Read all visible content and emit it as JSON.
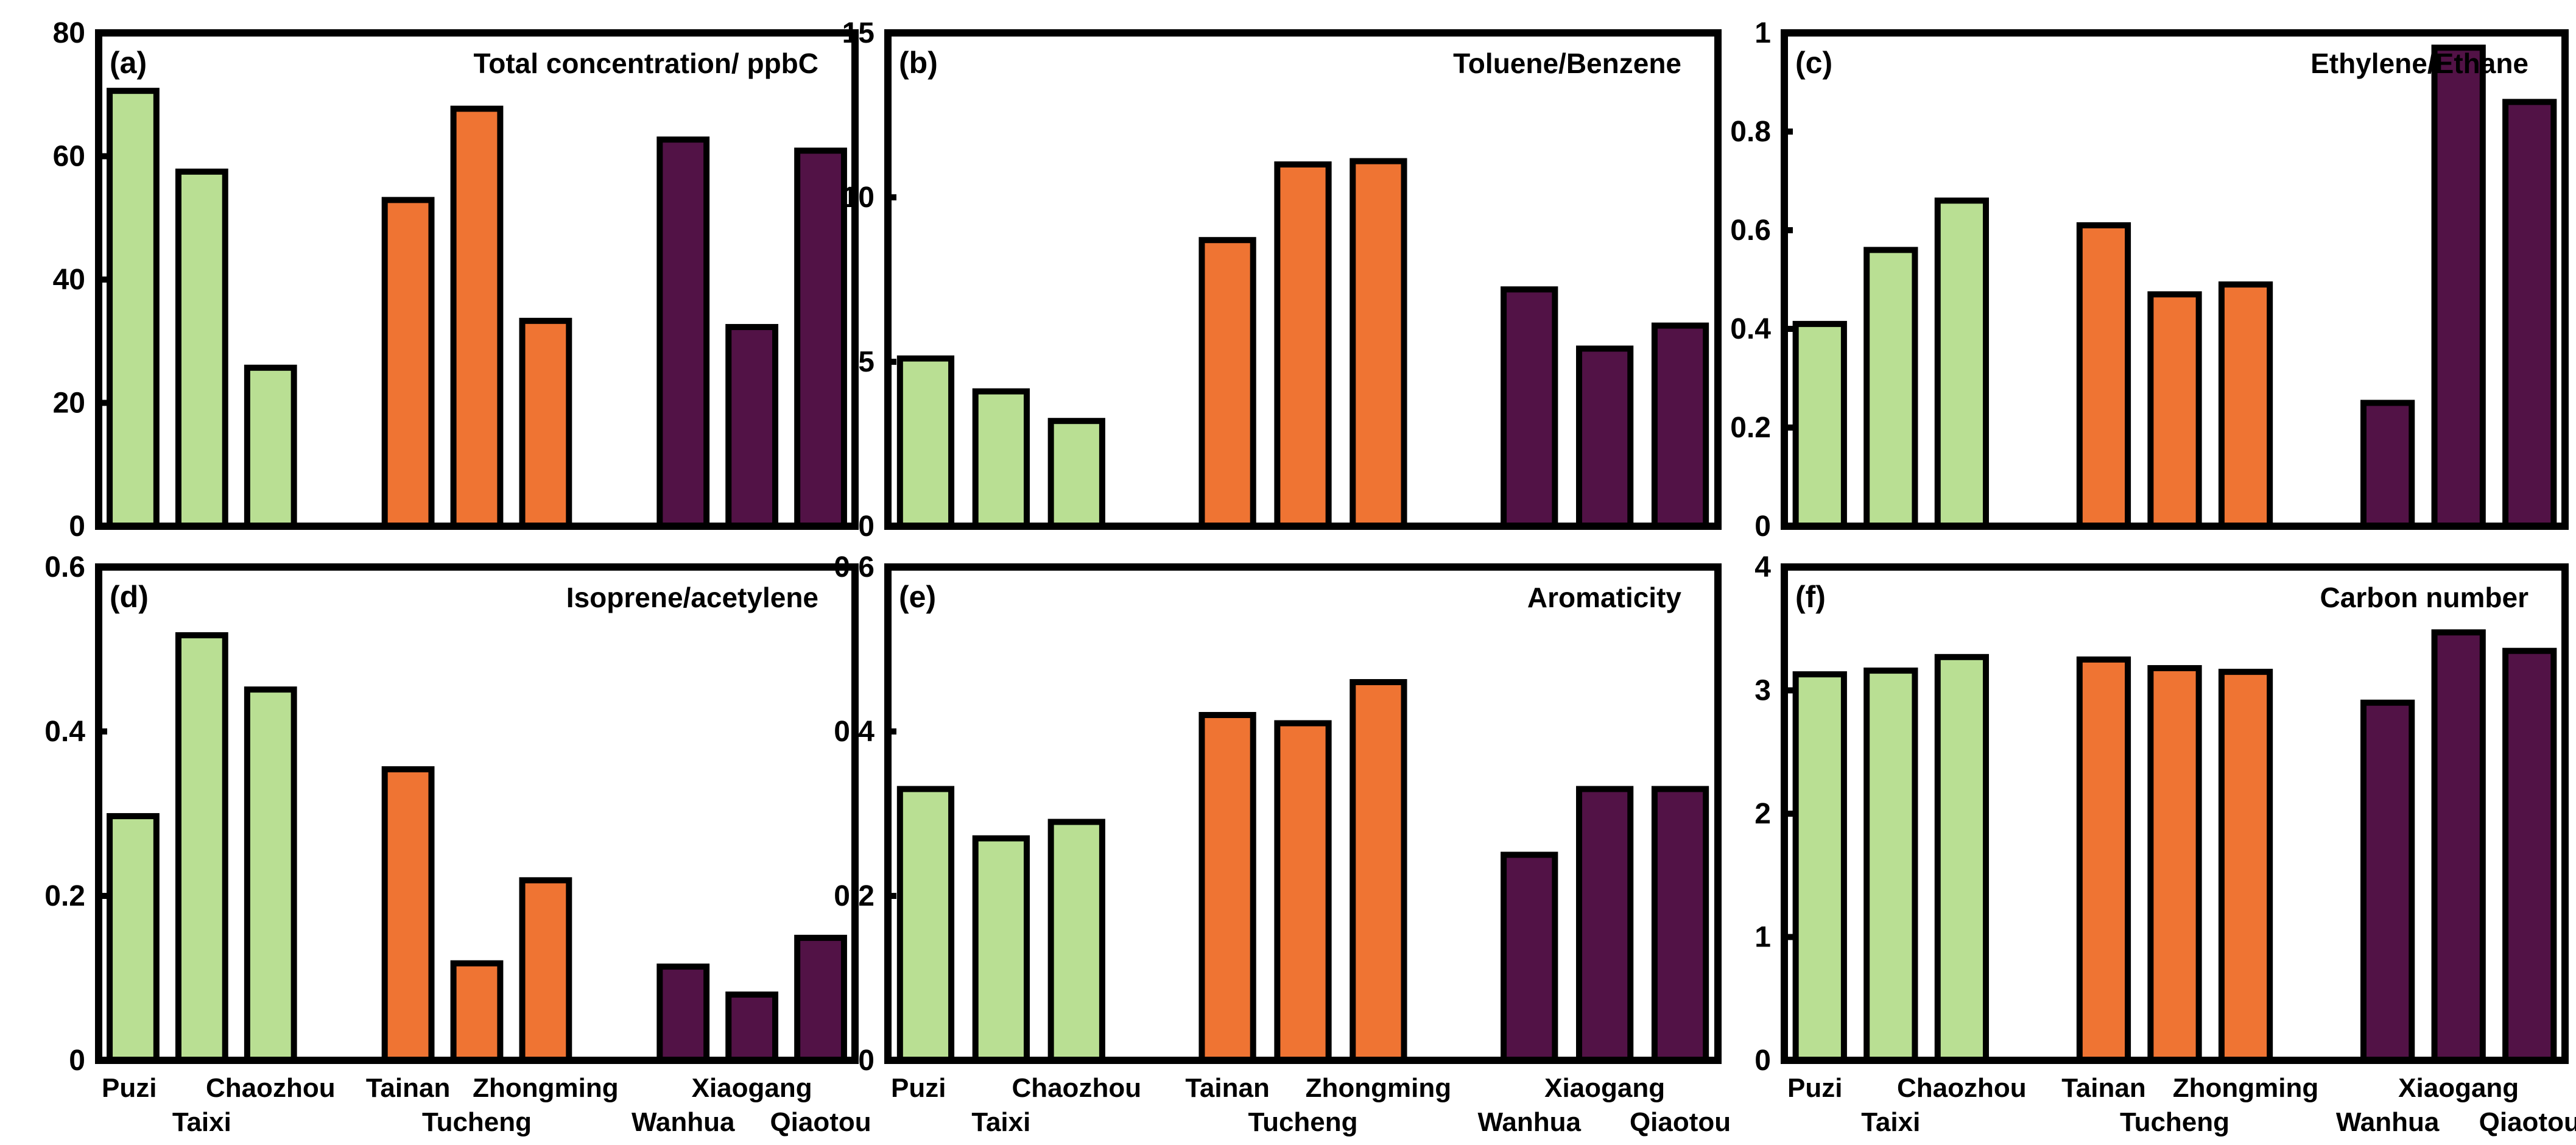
{
  "chart_data": {
    "type": "bar",
    "categories": [
      "Puzi",
      "Taixi",
      "Chaozhou",
      "Tainan",
      "Tucheng",
      "Zhongming",
      "Wanhua",
      "Xiaogang",
      "Qiaotou"
    ],
    "group_colors": [
      "#b9df93",
      "#b9df93",
      "#b9df93",
      "#ef7433",
      "#ef7433",
      "#ef7433",
      "#521246",
      "#521246",
      "#521246"
    ],
    "panels": [
      {
        "label": "(a)",
        "title": "Total concentration/ ppbC",
        "ylim": [
          0,
          80
        ],
        "yticks": [
          "0",
          "20",
          "40",
          "60",
          "80"
        ],
        "values": [
          70.6,
          57.5,
          25.7,
          52.9,
          67.7,
          33.3,
          62.7,
          32.3,
          60.9
        ]
      },
      {
        "label": "(b)",
        "title": "Toluene/Benzene",
        "ylim": [
          0,
          15
        ],
        "yticks": [
          "0",
          "5",
          "10",
          "15"
        ],
        "values": [
          5.1,
          4.1,
          3.2,
          8.7,
          11.0,
          11.1,
          7.2,
          5.4,
          6.1
        ]
      },
      {
        "label": "(c)",
        "title": "Ethylene/Ethane",
        "ylim": [
          0,
          1
        ],
        "yticks": [
          "0",
          "0.2",
          "0.4",
          "0.6",
          "0.8",
          "1"
        ],
        "values": [
          0.41,
          0.56,
          0.66,
          0.61,
          0.47,
          0.49,
          0.25,
          0.97,
          0.86
        ]
      },
      {
        "label": "(d)",
        "title": "Isoprene/acetylene",
        "ylim": [
          0,
          0.6
        ],
        "yticks": [
          "0",
          "0.2",
          "0.4",
          "0.6"
        ],
        "values": [
          0.297,
          0.517,
          0.451,
          0.354,
          0.118,
          0.219,
          0.114,
          0.08,
          0.149
        ]
      },
      {
        "label": "(e)",
        "title": "Aromaticity",
        "ylim": [
          0,
          0.6
        ],
        "yticks": [
          "0",
          "0.2",
          "0.4",
          "0.6"
        ],
        "values": [
          0.33,
          0.27,
          0.29,
          0.42,
          0.41,
          0.46,
          0.25,
          0.33,
          0.33
        ]
      },
      {
        "label": "(f)",
        "title": "Carbon number",
        "ylim": [
          0,
          4
        ],
        "yticks": [
          "0",
          "1",
          "2",
          "3",
          "4"
        ],
        "values": [
          3.13,
          3.16,
          3.27,
          3.25,
          3.18,
          3.15,
          2.9,
          3.47,
          3.32
        ]
      }
    ]
  }
}
